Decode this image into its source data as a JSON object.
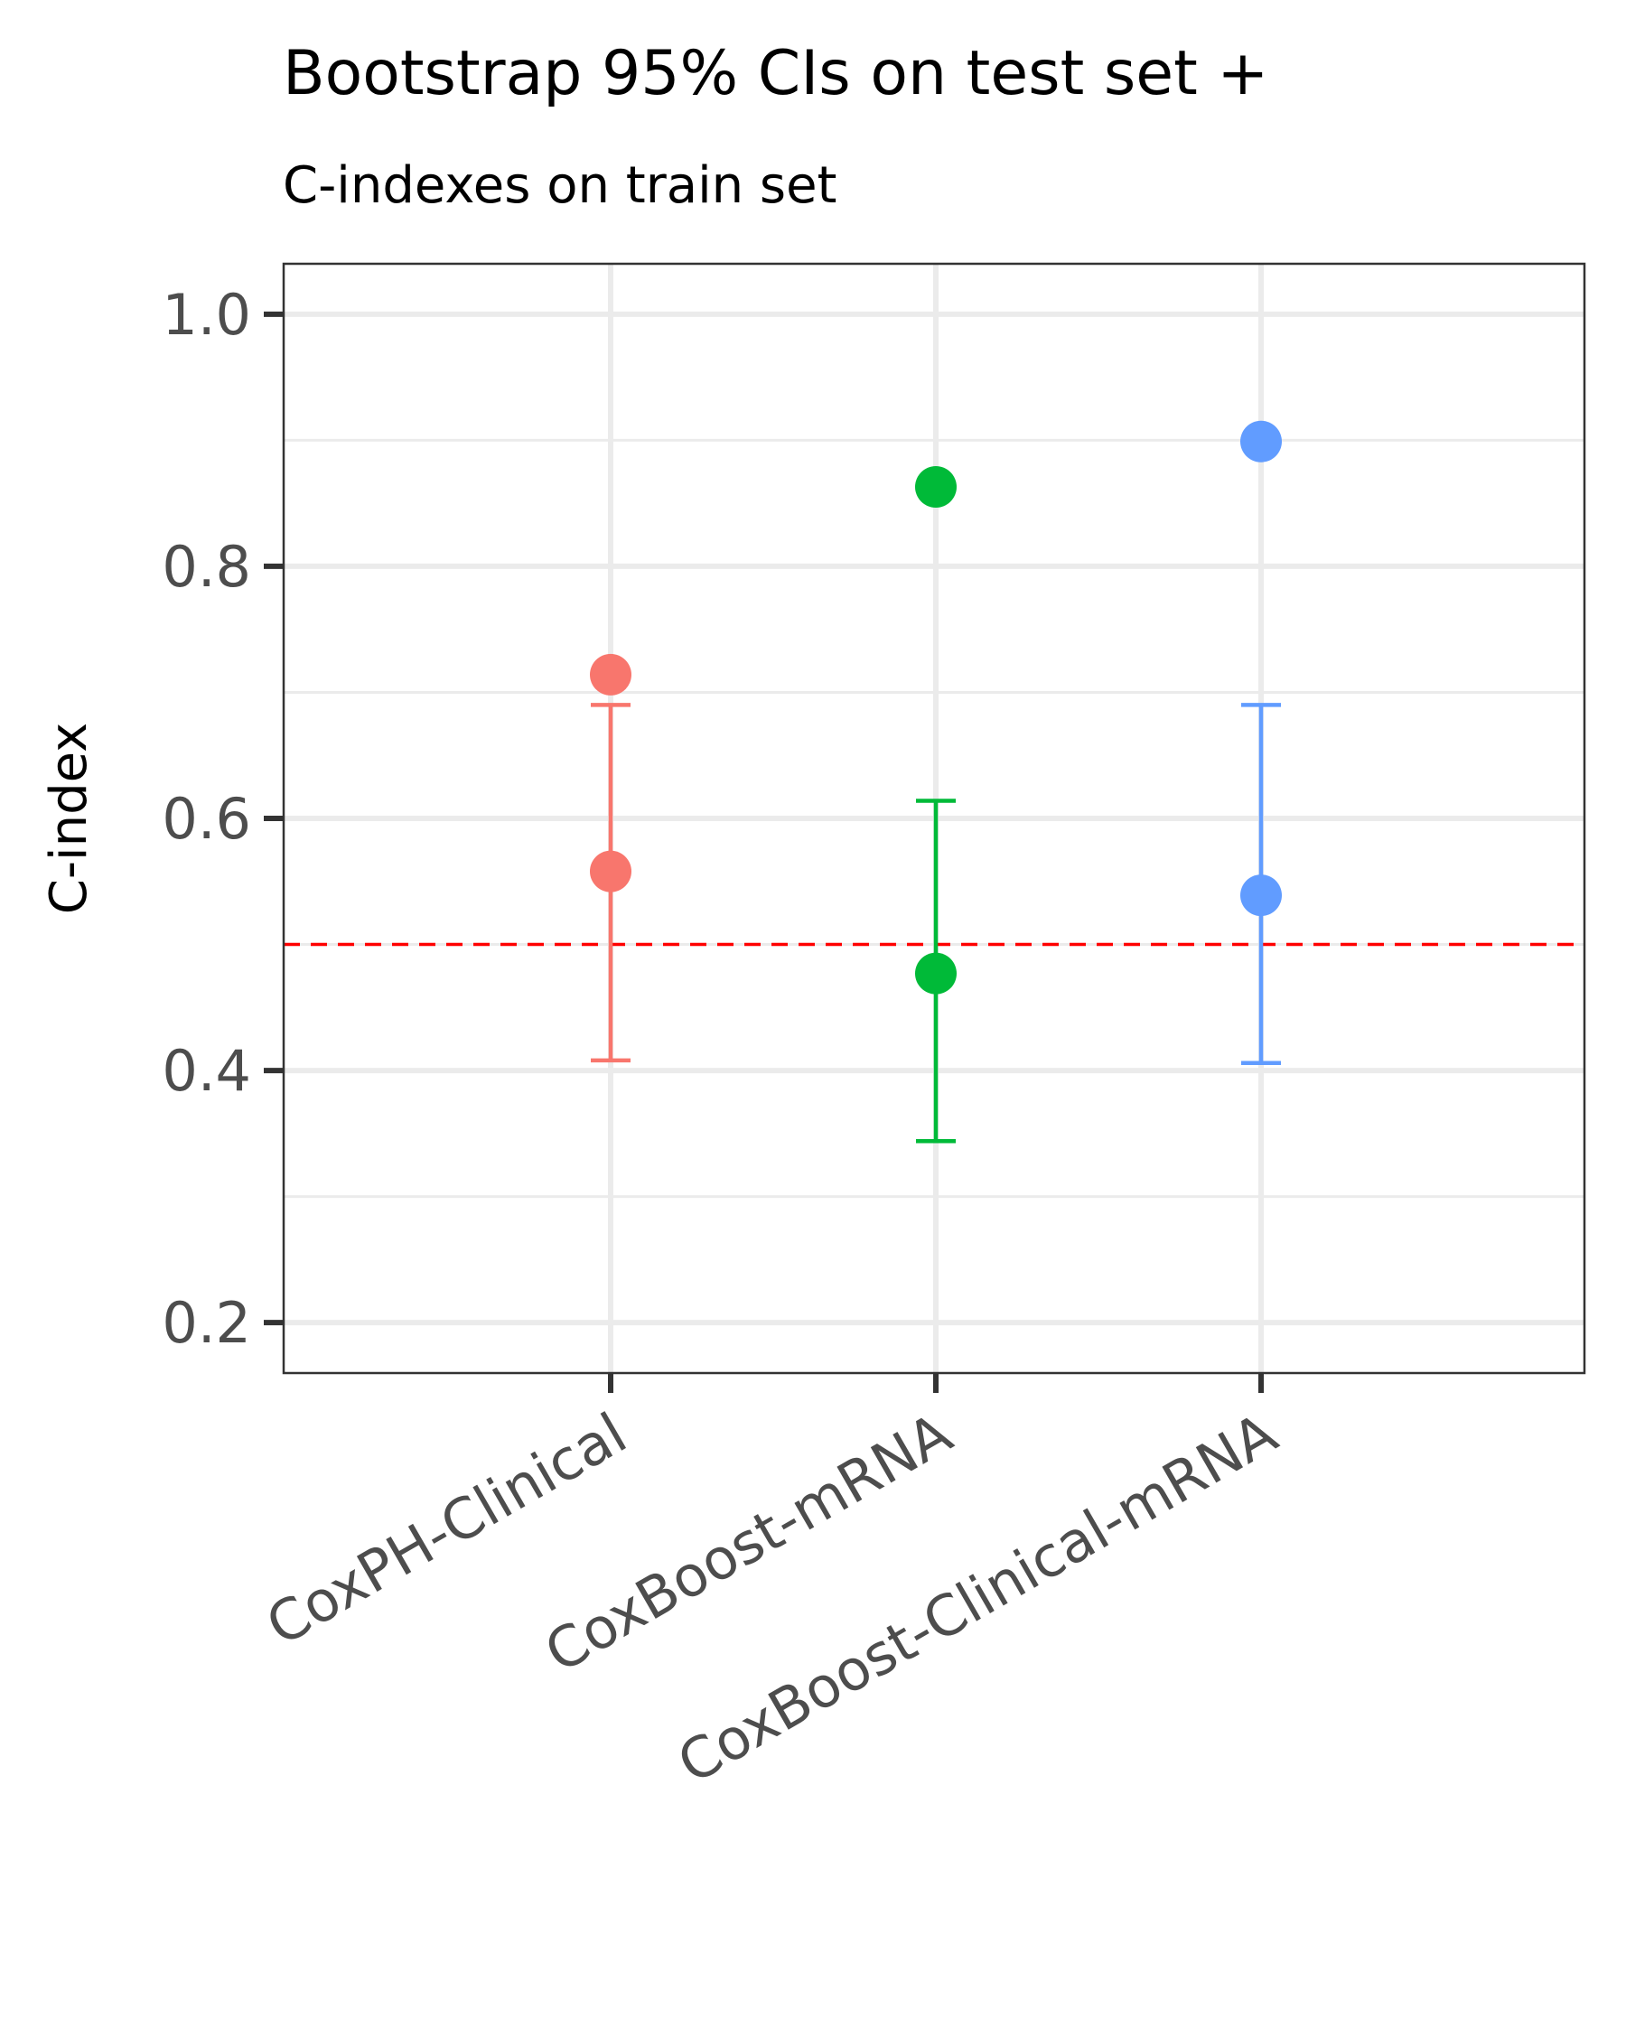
{
  "chart_data": {
    "type": "scatter",
    "title": "Bootstrap 95% CIs on test set +",
    "subtitle": "C-indexes on train set",
    "xlabel": "",
    "ylabel": "C-index",
    "categories": [
      "CoxPH-Clinical",
      "CoxBoost-mRNA",
      "CoxBoost-Clinical-mRNA"
    ],
    "colors": [
      "#F8766D",
      "#00BA38",
      "#619CFF"
    ],
    "train_c_index": [
      0.714,
      0.863,
      0.899
    ],
    "test_c_index": [
      0.558,
      0.477,
      0.539
    ],
    "test_ci_lower": [
      0.408,
      0.344,
      0.406
    ],
    "test_ci_upper": [
      0.69,
      0.614,
      0.69
    ],
    "reference_line": {
      "y": 0.5,
      "color": "#FF0000",
      "style": "dashed"
    },
    "ylim": [
      0.16,
      1.04
    ],
    "yticks": [
      0.2,
      0.4,
      0.6,
      0.8,
      1.0
    ],
    "ytick_labels": [
      "0.2",
      "0.4",
      "0.6",
      "0.8",
      "1.0"
    ],
    "grid": true,
    "legend": "none"
  }
}
